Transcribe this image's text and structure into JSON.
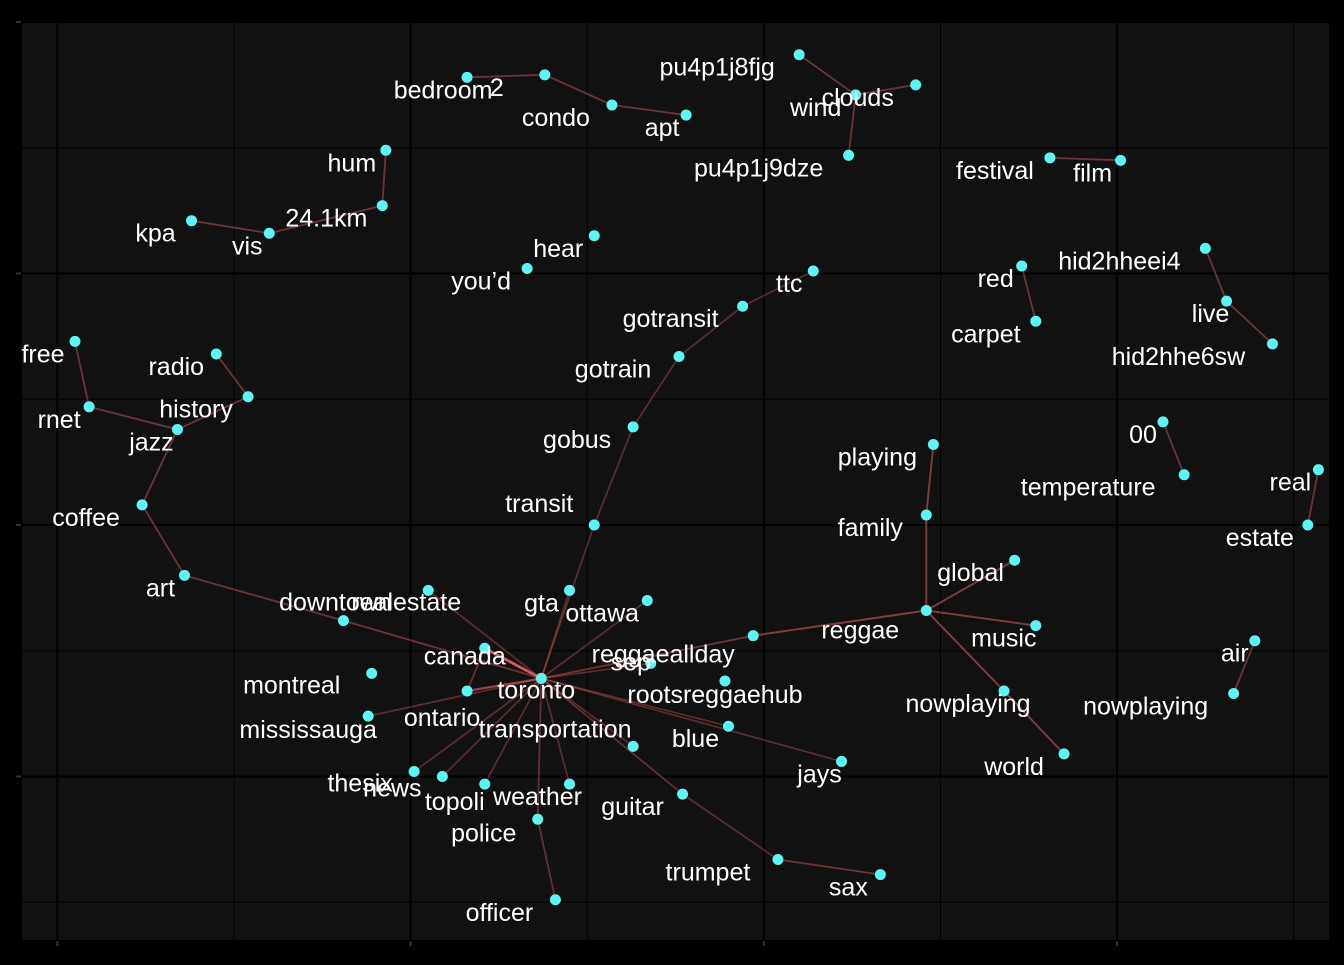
{
  "chart_data": {
    "type": "network",
    "title": "",
    "xlabel": "",
    "ylabel": "",
    "xlim": [
      -0.1,
      3.6
    ],
    "ylim": [
      -0.65,
      3.0
    ],
    "grid": true,
    "legend": "none",
    "colors": {
      "background": "#000000",
      "panel": "#111111",
      "grid": "#000000",
      "node": "#5CF5F5",
      "edge": "#E06060",
      "label": "#FFFFFF"
    },
    "nodes": [
      {
        "id": "toronto",
        "label": "toronto",
        "x": 1.37,
        "y": 0.39
      },
      {
        "id": "canada",
        "label": "canada",
        "x": 1.21,
        "y": 0.51
      },
      {
        "id": "ontario",
        "label": "ontario",
        "x": 1.16,
        "y": 0.34
      },
      {
        "id": "downtown",
        "label": "downtown",
        "x": 0.81,
        "y": 0.62
      },
      {
        "id": "montreal",
        "label": "montreal",
        "x": 0.89,
        "y": 0.41
      },
      {
        "id": "realestate",
        "label": "realestate",
        "x": 1.05,
        "y": 0.74
      },
      {
        "id": "mississauga",
        "label": "mississauga",
        "x": 0.88,
        "y": 0.24
      },
      {
        "id": "thesix",
        "label": "thesix",
        "x": 1.01,
        "y": 0.02
      },
      {
        "id": "news",
        "label": "news",
        "x": 1.09,
        "y": 0.0
      },
      {
        "id": "topoli",
        "label": "topoli",
        "x": 1.21,
        "y": -0.03
      },
      {
        "id": "weather",
        "label": "weather",
        "x": 1.45,
        "y": -0.03
      },
      {
        "id": "transportation",
        "label": "transportation",
        "x": 1.63,
        "y": 0.12
      },
      {
        "id": "police",
        "label": "police",
        "x": 1.36,
        "y": -0.17
      },
      {
        "id": "officer",
        "label": "officer",
        "x": 1.41,
        "y": -0.49
      },
      {
        "id": "guitar",
        "label": "guitar",
        "x": 1.77,
        "y": -0.07
      },
      {
        "id": "trumpet",
        "label": "trumpet",
        "x": 2.04,
        "y": -0.33
      },
      {
        "id": "sax",
        "label": "sax",
        "x": 2.33,
        "y": -0.39
      },
      {
        "id": "jays",
        "label": "jays",
        "x": 2.22,
        "y": 0.06
      },
      {
        "id": "blue",
        "label": "blue",
        "x": 1.9,
        "y": 0.2
      },
      {
        "id": "sep",
        "label": "sep",
        "x": 1.68,
        "y": 0.45
      },
      {
        "id": "ottawa",
        "label": "ottawa",
        "x": 1.67,
        "y": 0.7
      },
      {
        "id": "gta",
        "label": "gta",
        "x": 1.45,
        "y": 0.74
      },
      {
        "id": "transit",
        "label": "transit",
        "x": 1.52,
        "y": 1.0
      },
      {
        "id": "gobus",
        "label": "gobus",
        "x": 1.63,
        "y": 1.39
      },
      {
        "id": "gotrain",
        "label": "gotrain",
        "x": 1.76,
        "y": 1.67
      },
      {
        "id": "gotransit",
        "label": "gotransit",
        "x": 1.94,
        "y": 1.87
      },
      {
        "id": "ttc",
        "label": "ttc",
        "x": 2.14,
        "y": 2.01
      },
      {
        "id": "reggaeallday",
        "label": "reggaeallday",
        "x": 1.97,
        "y": 0.56
      },
      {
        "id": "reggae",
        "label": "reggae",
        "x": 2.46,
        "y": 0.66
      },
      {
        "id": "rootsreggaehub",
        "label": "rootsreggaehub",
        "x": 1.89,
        "y": 0.38
      },
      {
        "id": "global",
        "label": "global",
        "x": 2.71,
        "y": 0.86
      },
      {
        "id": "music",
        "label": "music",
        "x": 2.77,
        "y": 0.6
      },
      {
        "id": "nowplaying",
        "label": "nowplaying",
        "x": 2.68,
        "y": 0.34
      },
      {
        "id": "world",
        "label": "world",
        "x": 2.85,
        "y": 0.09
      },
      {
        "id": "family",
        "label": "family",
        "x": 2.46,
        "y": 1.04
      },
      {
        "id": "playing",
        "label": "playing",
        "x": 2.48,
        "y": 1.32
      },
      {
        "id": "coffee",
        "label": "coffee",
        "x": 0.24,
        "y": 1.08
      },
      {
        "id": "art",
        "label": "art",
        "x": 0.36,
        "y": 0.8
      },
      {
        "id": "jazz",
        "label": "jazz",
        "x": 0.34,
        "y": 1.38
      },
      {
        "id": "history",
        "label": "history",
        "x": 0.54,
        "y": 1.51
      },
      {
        "id": "radio",
        "label": "radio",
        "x": 0.45,
        "y": 1.68
      },
      {
        "id": "rnet",
        "label": "rnet",
        "x": 0.09,
        "y": 1.47
      },
      {
        "id": "free",
        "label": "free",
        "x": 0.05,
        "y": 1.73
      },
      {
        "id": "kpa",
        "label": "kpa",
        "x": 0.38,
        "y": 2.21
      },
      {
        "id": "vis",
        "label": "vis",
        "x": 0.6,
        "y": 2.16
      },
      {
        "id": "24.1km",
        "label": "24.1km",
        "x": 0.92,
        "y": 2.27
      },
      {
        "id": "hum",
        "label": "hum",
        "x": 0.93,
        "y": 2.49
      },
      {
        "id": "bedroom",
        "label": "bedroom",
        "x": 1.16,
        "y": 2.78
      },
      {
        "id": "2",
        "label": "2",
        "x": 1.38,
        "y": 2.79
      },
      {
        "id": "condo",
        "label": "condo",
        "x": 1.57,
        "y": 2.67
      },
      {
        "id": "apt",
        "label": "apt",
        "x": 1.78,
        "y": 2.63
      },
      {
        "id": "hear",
        "label": "hear",
        "x": 1.52,
        "y": 2.15
      },
      {
        "id": "you_d",
        "label": "you’d",
        "x": 1.33,
        "y": 2.02
      },
      {
        "id": "pu4p1j8fjg",
        "label": "pu4p1j8fjg",
        "x": 2.1,
        "y": 2.87
      },
      {
        "id": "wind",
        "label": "wind",
        "x": 2.26,
        "y": 2.71
      },
      {
        "id": "clouds",
        "label": "clouds",
        "x": 2.43,
        "y": 2.75
      },
      {
        "id": "pu4p1j9dze",
        "label": "pu4p1j9dze",
        "x": 2.24,
        "y": 2.47
      },
      {
        "id": "festival",
        "label": "festival",
        "x": 2.81,
        "y": 2.46
      },
      {
        "id": "film",
        "label": "film",
        "x": 3.01,
        "y": 2.45
      },
      {
        "id": "red",
        "label": "red",
        "x": 2.73,
        "y": 2.03
      },
      {
        "id": "carpet",
        "label": "carpet",
        "x": 2.77,
        "y": 1.81
      },
      {
        "id": "hid2hheei4",
        "label": "hid2hheei4",
        "x": 3.25,
        "y": 2.1
      },
      {
        "id": "live",
        "label": "live",
        "x": 3.31,
        "y": 1.89
      },
      {
        "id": "hid2hhe6sw",
        "label": "hid2hhe6sw",
        "x": 3.44,
        "y": 1.72
      },
      {
        "id": "00",
        "label": "00",
        "x": 3.13,
        "y": 1.41
      },
      {
        "id": "temperature",
        "label": "temperature",
        "x": 3.19,
        "y": 1.2
      },
      {
        "id": "real",
        "label": "real",
        "x": 3.57,
        "y": 1.22
      },
      {
        "id": "estate",
        "label": "estate",
        "x": 3.54,
        "y": 1.0
      },
      {
        "id": "air",
        "label": "air",
        "x": 3.39,
        "y": 0.54
      },
      {
        "id": "nowplaying_air",
        "label": "nowplaying",
        "x": 3.33,
        "y": 0.33
      }
    ],
    "edges": [
      {
        "from": "toronto",
        "to": "canada",
        "weight": 1.0
      },
      {
        "from": "toronto",
        "to": "ontario",
        "weight": 0.6
      },
      {
        "from": "toronto",
        "to": "downtown",
        "weight": 0.35
      },
      {
        "from": "toronto",
        "to": "mississauga",
        "weight": 0.25
      },
      {
        "from": "toronto",
        "to": "thesix",
        "weight": 0.25
      },
      {
        "from": "toronto",
        "to": "news",
        "weight": 0.25
      },
      {
        "from": "toronto",
        "to": "topoli",
        "weight": 0.25
      },
      {
        "from": "toronto",
        "to": "weather",
        "weight": 0.25
      },
      {
        "from": "toronto",
        "to": "transportation",
        "weight": 0.25
      },
      {
        "from": "toronto",
        "to": "police",
        "weight": 0.3
      },
      {
        "from": "toronto",
        "to": "guitar",
        "weight": 0.3
      },
      {
        "from": "toronto",
        "to": "jays",
        "weight": 0.25
      },
      {
        "from": "toronto",
        "to": "blue",
        "weight": 0.25
      },
      {
        "from": "toronto",
        "to": "sep",
        "weight": 0.25
      },
      {
        "from": "toronto",
        "to": "ottawa",
        "weight": 0.25
      },
      {
        "from": "toronto",
        "to": "gta",
        "weight": 0.25
      },
      {
        "from": "toronto",
        "to": "realestate",
        "weight": 0.25
      },
      {
        "from": "toronto",
        "to": "transit",
        "weight": 0.25
      },
      {
        "from": "toronto",
        "to": "reggaeallday",
        "weight": 0.35
      },
      {
        "from": "canada",
        "to": "ontario",
        "weight": 0.3
      },
      {
        "from": "reggaeallday",
        "to": "reggae",
        "weight": 0.5
      },
      {
        "from": "reggae",
        "to": "global",
        "weight": 0.45
      },
      {
        "from": "reggae",
        "to": "music",
        "weight": 0.45
      },
      {
        "from": "reggae",
        "to": "nowplaying",
        "weight": 0.45
      },
      {
        "from": "nowplaying",
        "to": "world",
        "weight": 0.45
      },
      {
        "from": "reggae",
        "to": "family",
        "weight": 0.45
      },
      {
        "from": "family",
        "to": "playing",
        "weight": 0.45
      },
      {
        "from": "transit",
        "to": "gobus",
        "weight": 0.25
      },
      {
        "from": "gobus",
        "to": "gotrain",
        "weight": 0.25
      },
      {
        "from": "gotrain",
        "to": "gotransit",
        "weight": 0.25
      },
      {
        "from": "gotransit",
        "to": "ttc",
        "weight": 0.25
      },
      {
        "from": "police",
        "to": "officer",
        "weight": 0.3
      },
      {
        "from": "trumpet",
        "to": "sax",
        "weight": 0.35
      },
      {
        "from": "guitar",
        "to": "trumpet",
        "weight": 0.25
      },
      {
        "from": "downtown",
        "to": "art",
        "weight": 0.35
      },
      {
        "from": "art",
        "to": "coffee",
        "weight": 0.35
      },
      {
        "from": "coffee",
        "to": "jazz",
        "weight": 0.35
      },
      {
        "from": "jazz",
        "to": "history",
        "weight": 0.35
      },
      {
        "from": "history",
        "to": "radio",
        "weight": 0.35
      },
      {
        "from": "jazz",
        "to": "rnet",
        "weight": 0.35
      },
      {
        "from": "rnet",
        "to": "free",
        "weight": 0.35
      },
      {
        "from": "kpa",
        "to": "vis",
        "weight": 0.35
      },
      {
        "from": "vis",
        "to": "24.1km",
        "weight": 0.35
      },
      {
        "from": "24.1km",
        "to": "hum",
        "weight": 0.35
      },
      {
        "from": "bedroom",
        "to": "2",
        "weight": 0.35
      },
      {
        "from": "2",
        "to": "condo",
        "weight": 0.35
      },
      {
        "from": "condo",
        "to": "apt",
        "weight": 0.35
      },
      {
        "from": "pu4p1j8fjg",
        "to": "wind",
        "weight": 0.35
      },
      {
        "from": "wind",
        "to": "clouds",
        "weight": 0.35
      },
      {
        "from": "wind",
        "to": "pu4p1j9dze",
        "weight": 0.35
      },
      {
        "from": "festival",
        "to": "film",
        "weight": 0.35
      },
      {
        "from": "red",
        "to": "carpet",
        "weight": 0.35
      },
      {
        "from": "hid2hheei4",
        "to": "live",
        "weight": 0.35
      },
      {
        "from": "live",
        "to": "hid2hhe6sw",
        "weight": 0.35
      },
      {
        "from": "00",
        "to": "temperature",
        "weight": 0.35
      },
      {
        "from": "real",
        "to": "estate",
        "weight": 0.35
      },
      {
        "from": "air",
        "to": "nowplaying_air",
        "weight": 0.35
      }
    ]
  }
}
